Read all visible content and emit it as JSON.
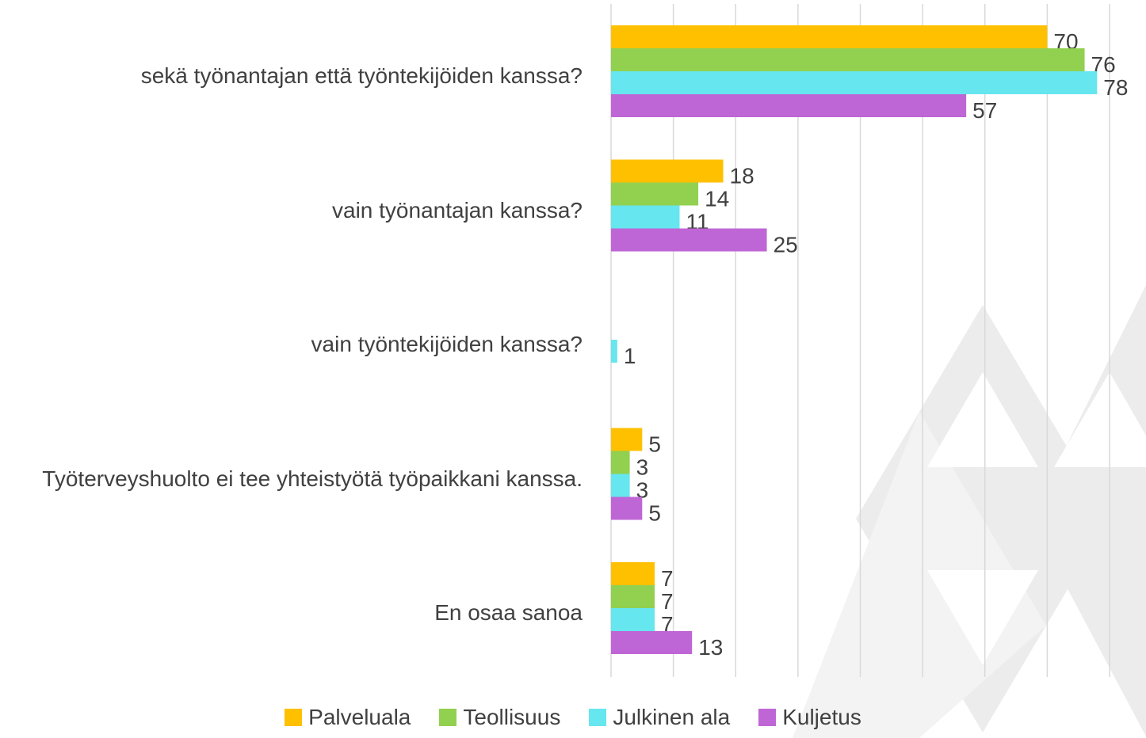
{
  "chart_data": {
    "type": "hbar",
    "categories": [
      "sekä työnantajan että työntekijöiden kanssa?",
      "vain työnantajan kanssa?",
      "vain työntekijöiden kanssa?",
      "Työterveyshuolto ei tee yhteistyötä työpaikkani kanssa.",
      "En osaa sanoa"
    ],
    "series": [
      {
        "name": "Palveluala",
        "color": "#ffc000",
        "values": [
          70,
          18,
          null,
          5,
          7
        ]
      },
      {
        "name": "Teollisuus",
        "color": "#92d050",
        "values": [
          76,
          14,
          null,
          3,
          7
        ]
      },
      {
        "name": "Julkinen ala",
        "color": "#66e6ee",
        "values": [
          78,
          11,
          1,
          3,
          7
        ]
      },
      {
        "name": "Kuljetus",
        "color": "#bf66d6",
        "values": [
          57,
          25,
          null,
          5,
          13
        ]
      }
    ],
    "xlim": [
      0,
      80
    ],
    "xticks": [
      0,
      10,
      20,
      30,
      40,
      50,
      60,
      70,
      80
    ],
    "grid": true
  }
}
